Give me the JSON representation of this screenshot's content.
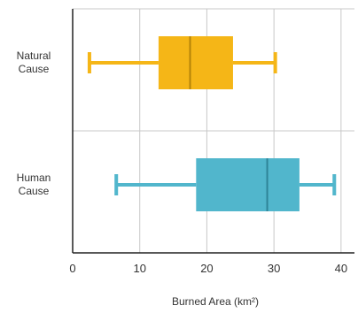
{
  "chart_data": {
    "type": "boxplot",
    "title": "",
    "xlabel": "Burned Area (km²)",
    "ylabel": "",
    "xlim": [
      0,
      42
    ],
    "xticks": [
      0,
      10,
      20,
      30,
      40
    ],
    "xtick_labels": [
      "0",
      "10",
      "20",
      "30",
      "40"
    ],
    "grid": true,
    "categories": [
      {
        "label_lines": [
          "Natural",
          "Cause"
        ],
        "min": 2.5,
        "q1": 12.8,
        "median": 17.5,
        "q3": 23.9,
        "max": 30.2,
        "color": "#F5B617",
        "median_color": "#B58408"
      },
      {
        "label_lines": [
          "Human",
          "Cause"
        ],
        "min": 6.5,
        "q1": 18.4,
        "median": 29.0,
        "q3": 33.8,
        "max": 39.0,
        "color": "#51B6CC",
        "median_color": "#2F8497"
      }
    ]
  }
}
